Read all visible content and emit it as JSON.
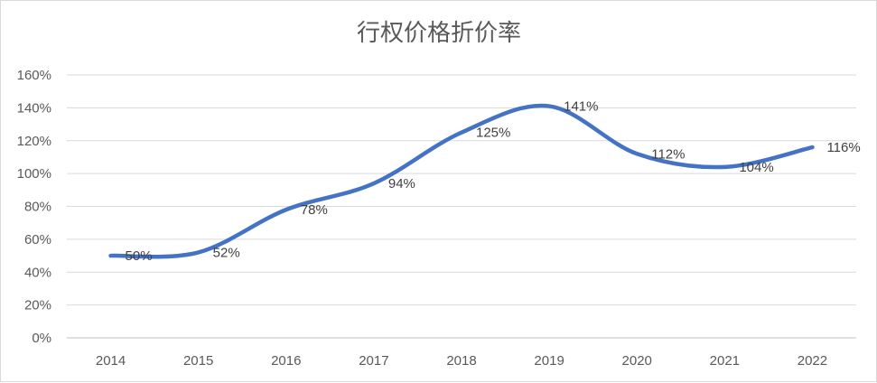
{
  "chart_data": {
    "type": "line",
    "title": "行权价格折价率",
    "xlabel": "",
    "ylabel": "",
    "categories": [
      "2014",
      "2015",
      "2016",
      "2017",
      "2018",
      "2019",
      "2020",
      "2021",
      "2022"
    ],
    "series": [
      {
        "values": [
          50,
          52,
          78,
          94,
          125,
          141,
          112,
          104,
          116
        ],
        "data_labels": [
          "50%",
          "52%",
          "78%",
          "94%",
          "125%",
          "141%",
          "112%",
          "104%",
          "116%"
        ],
        "color": "#4472c4",
        "smooth": true
      }
    ],
    "ylim": [
      0,
      160
    ],
    "yticks": [
      0,
      20,
      40,
      60,
      80,
      100,
      120,
      140,
      160
    ],
    "ytick_labels": [
      "0%",
      "20%",
      "40%",
      "60%",
      "80%",
      "100%",
      "120%",
      "140%",
      "160%"
    ],
    "grid": true,
    "legend": "none"
  }
}
